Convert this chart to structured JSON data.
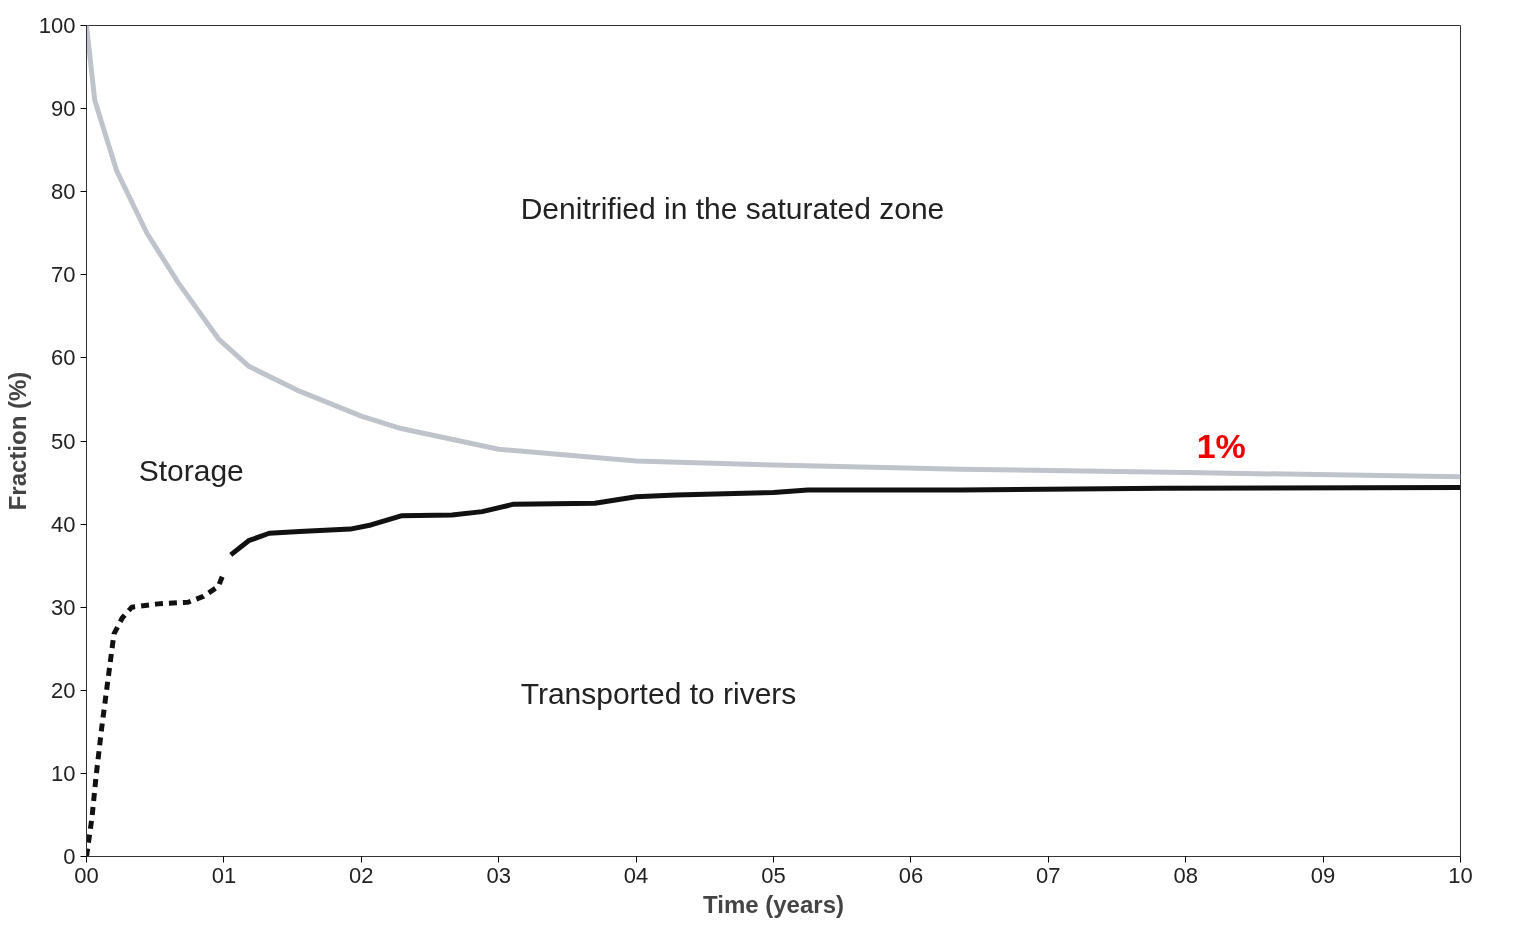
{
  "chart_data": {
    "type": "line",
    "xlabel": "Time (years)",
    "ylabel": "Fraction (%)",
    "xlim": [
      0,
      10
    ],
    "ylim": [
      0,
      100
    ],
    "xticks": [
      {
        "value": 0,
        "label": "00"
      },
      {
        "value": 1,
        "label": "01"
      },
      {
        "value": 2,
        "label": "02"
      },
      {
        "value": 3,
        "label": "03"
      },
      {
        "value": 4,
        "label": "04"
      },
      {
        "value": 5,
        "label": "05"
      },
      {
        "value": 6,
        "label": "06"
      },
      {
        "value": 7,
        "label": "07"
      },
      {
        "value": 8,
        "label": "08"
      },
      {
        "value": 9,
        "label": "09"
      },
      {
        "value": 10,
        "label": "10"
      }
    ],
    "yticks": [
      0,
      10,
      20,
      30,
      40,
      50,
      60,
      70,
      80,
      90,
      100
    ],
    "grid": false,
    "marker": "none",
    "series": [
      {
        "color": "#bfc4cc",
        "line_style": "solid",
        "x": [
          0,
          0.06,
          0.22,
          0.44,
          0.67,
          0.96,
          1.18,
          1.55,
          2.0,
          2.29,
          3.0,
          4.0,
          5.0,
          6.36,
          8.0,
          10
        ],
        "values": [
          100,
          91,
          82.5,
          75,
          69,
          62.3,
          59,
          56,
          53,
          51.5,
          49,
          47.6,
          47.1,
          46.6,
          46.2,
          45.7
        ]
      },
      {
        "color": "#111111",
        "line_style": "dashed",
        "x": [
          0,
          0.04,
          0.07,
          0.11,
          0.15,
          0.2,
          0.26,
          0.33,
          0.52,
          0.74,
          0.85,
          0.96,
          1.0
        ],
        "values": [
          0,
          4.7,
          9.7,
          15.4,
          20.5,
          26.8,
          28.7,
          30,
          30.4,
          30.6,
          31.3,
          32.5,
          34.2
        ]
      },
      {
        "color": "#111111",
        "line_style": "solid",
        "x": [
          1.05,
          1.18,
          1.33,
          1.55,
          1.92,
          2.07,
          2.29,
          2.66,
          2.88,
          3.11,
          3.7,
          4.0,
          4.29,
          5.0,
          5.25,
          6.36,
          7.84,
          10
        ],
        "values": [
          36.3,
          38,
          38.9,
          39.1,
          39.4,
          39.9,
          41,
          41.1,
          41.5,
          42.4,
          42.5,
          43.3,
          43.5,
          43.8,
          44.1,
          44.1,
          44.3,
          44.4
        ]
      }
    ],
    "annotations": [
      "Denitrified in the saturated zone",
      "Storage",
      "Transported to rivers",
      "1%"
    ]
  }
}
